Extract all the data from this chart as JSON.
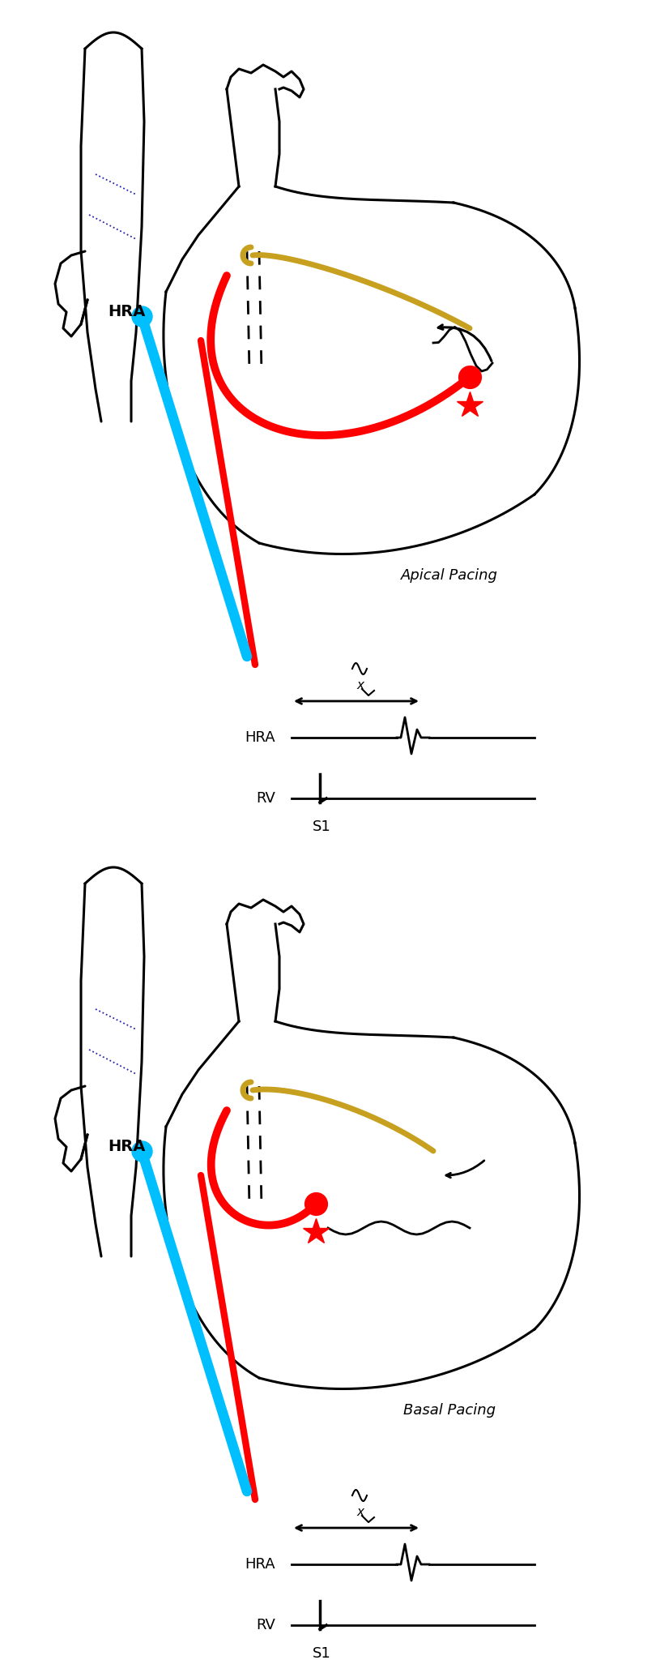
{
  "background_color": "#ffffff",
  "heart_outline_color": "#000000",
  "catheter_blue_color": "#00bfff",
  "catheter_red_color": "#ff0000",
  "pathway_gold_color": "#c8a020",
  "star_color": "#ff0000",
  "dot_color": "#ff0000",
  "blue_dotted_color": "#2222aa",
  "signal_color": "#000000",
  "label_fontsize": 13,
  "title_fontsize": 13,
  "panel1_title": "Apical Pacing",
  "panel2_title": "Basal Pacing",
  "hra_label": "HRA",
  "rv_label": "RV",
  "s1_label": "S1",
  "x_label": "x"
}
